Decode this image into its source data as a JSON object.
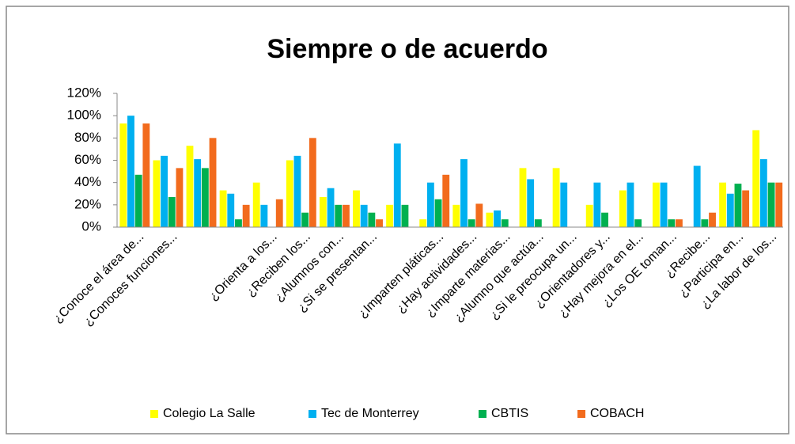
{
  "chart_data": {
    "type": "bar",
    "title": "Siempre o de acuerdo",
    "categories": [
      "¿Conoce el área de...",
      "¿Conoces funciones...",
      null,
      null,
      "¿Orienta a los...",
      "¿Reciben los...",
      "¿Alumnos con...",
      "¿Si se presentan...",
      null,
      "¿Imparten pláticas...",
      "¿Hay actividades...",
      "¿Imparte materias...",
      "¿Alumno que actúa...",
      "¿Si le preocupa un...",
      "¿Orientadores y...",
      "¿Hay mejora en el...",
      "¿Los OE toman...",
      "¿Recibe...",
      "¿Participa en...",
      "¿La labor de los..."
    ],
    "series": [
      {
        "name": "Colegio La Salle",
        "color": "#ffff00",
        "values": [
          93,
          60,
          73,
          33,
          40,
          60,
          27,
          33,
          20,
          7,
          20,
          13,
          53,
          53,
          20,
          33,
          40,
          0,
          40,
          87
        ]
      },
      {
        "name": "Tec de Monterrey",
        "color": "#00b0f0",
        "values": [
          100,
          64,
          61,
          30,
          20,
          64,
          35,
          20,
          75,
          40,
          61,
          15,
          43,
          40,
          40,
          40,
          40,
          55,
          30,
          61
        ]
      },
      {
        "name": "CBTIS",
        "color": "#00b050",
        "values": [
          47,
          27,
          53,
          7,
          0,
          13,
          20,
          13,
          20,
          25,
          7,
          7,
          7,
          0,
          13,
          7,
          7,
          7,
          39,
          40
        ]
      },
      {
        "name": "COBACH",
        "color": "#f26b1d",
        "values": [
          93,
          53,
          80,
          20,
          25,
          80,
          20,
          7,
          0,
          47,
          21,
          0,
          0,
          0,
          0,
          0,
          7,
          13,
          33,
          40
        ]
      }
    ],
    "ylim": [
      0,
      120
    ],
    "yticks": [
      {
        "value": 0,
        "label": "0%"
      },
      {
        "value": 20,
        "label": "20%"
      },
      {
        "value": 40,
        "label": "40%"
      },
      {
        "value": 60,
        "label": "60%"
      },
      {
        "value": 80,
        "label": "80%"
      },
      {
        "value": 100,
        "label": "100%"
      },
      {
        "value": 120,
        "label": "120%"
      }
    ],
    "legend": "bottom"
  }
}
